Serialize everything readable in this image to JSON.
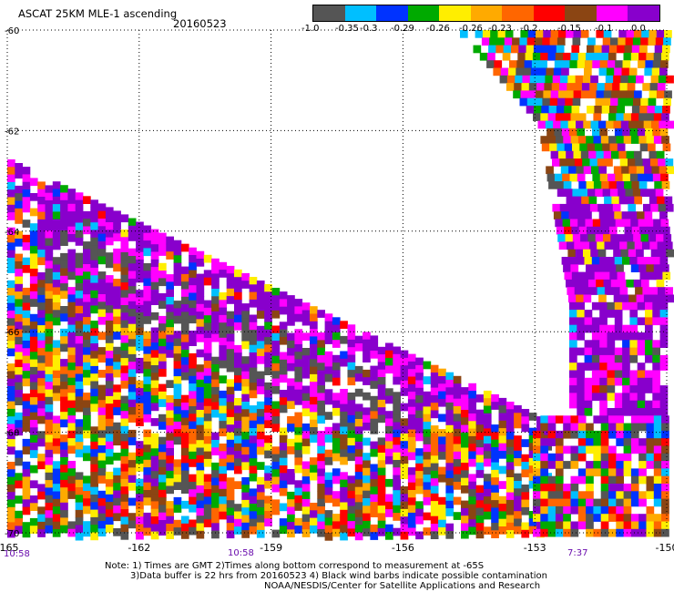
{
  "header": {
    "title": "ASCAT 25KM MLE-1 ascending",
    "date": "20160523"
  },
  "colorbar": {
    "labels": [
      "-1.0",
      "-0.35",
      "-0.3",
      "-0.29",
      "-0.26",
      "-0.26",
      "-0.23",
      "-0.2",
      "-0.15",
      "-0.1",
      "0.0"
    ],
    "colors": [
      "#555555",
      "#00bfff",
      "#0033ff",
      "#00aa00",
      "#ffee00",
      "#ffaa00",
      "#ff6600",
      "#ff0000",
      "#8b4513",
      "#ff00ff",
      "#8800cc"
    ]
  },
  "time_labels": {
    "left": "10:58",
    "middle": "10:58",
    "right": "7:37"
  },
  "notes": {
    "line1": "Note: 1) Times are GMT 2)Times along bottom correspond to measurement at -65S",
    "line2": "3)Data buffer is 22 hrs from 20160523 4) Black wind barbs indicate possible contamination",
    "line3": "NOAA/NESDIS/Center for Satellite Applications and Research"
  },
  "chart_data": {
    "type": "heatmap",
    "title": "ASCAT 25KM MLE-1 ascending",
    "xlabel": "",
    "ylabel": "",
    "xlim": [
      -165,
      -150
    ],
    "ylim": [
      -70,
      -60
    ],
    "x_ticks": [
      "-165",
      "-162",
      "-159",
      "-156",
      "-153",
      "-150"
    ],
    "y_ticks": [
      "-60",
      "-62",
      "-64",
      "-66",
      "-68",
      "-70"
    ],
    "grid": true,
    "value_bins": [
      "-1.0",
      "-0.35",
      "-0.3",
      "-0.29",
      "-0.26",
      "-0.26",
      "-0.23",
      "-0.2",
      "-0.15",
      "-0.1",
      "0.0"
    ],
    "swaths": [
      {
        "name": "",
        "region": "left swath",
        "lon_range": [
          -165,
          -152.5
        ],
        "lat_range": [
          -70,
          -63.3
        ]
      },
      {
        "name": "",
        "region": "right swath",
        "lon_range": [
          -154.5,
          -150
        ],
        "lat_range": [
          -70,
          -60
        ]
      }
    ]
  }
}
